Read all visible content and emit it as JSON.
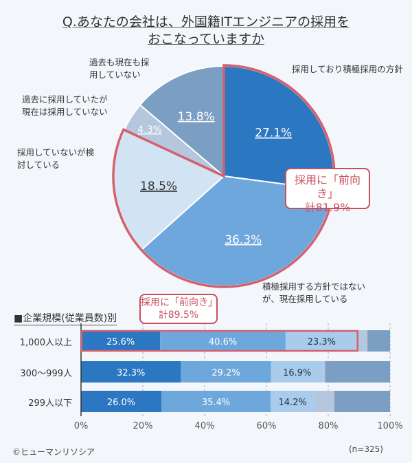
{
  "chart_data": [
    {
      "type": "pie",
      "title": "Q.あなたの会社は、外国籍ITエンジニアの採用をおこなっていますか",
      "slices": [
        {
          "label": "採用しており積極採用の方針",
          "value": 27.1,
          "display": "27.1%",
          "color": "#2b77c2"
        },
        {
          "label": "積極採用する方針ではないが、現在採用している",
          "value": 36.3,
          "display": "36.3%",
          "color": "#6ea7dc"
        },
        {
          "label": "採用していないが検討している",
          "value": 18.5,
          "display": "18.5%",
          "color": "#d2e3f4"
        },
        {
          "label": "過去に採用していたが現在は採用していない",
          "value": 4.3,
          "display": "4.3%",
          "color": "#b4c7dc"
        },
        {
          "label": "過去も現在も採用していない",
          "value": 13.8,
          "display": "13.8%",
          "color": "#7b9ec3"
        }
      ],
      "callout": {
        "line1": "採用に「前向き」",
        "line2": "計81.9%"
      }
    },
    {
      "type": "bar",
      "orientation": "horizontal",
      "stacked": true,
      "subtitle": "■企業規模(従業員数)別",
      "categories": [
        "1,000人以上",
        "300〜999人",
        "299人以下"
      ],
      "series": [
        {
          "values": [
            25.6,
            32.3,
            26.0
          ],
          "color": "#2b77c2",
          "show_labels": true
        },
        {
          "values": [
            40.6,
            29.2,
            35.4
          ],
          "color": "#6ea7dc",
          "show_labels": true
        },
        {
          "values": [
            23.3,
            16.9,
            14.2
          ],
          "color": "#a9cbec",
          "show_labels": true
        },
        {
          "values": [
            3.2,
            0.6,
            6.4
          ],
          "color": "#b4c7dc",
          "show_labels": false
        },
        {
          "values": [
            7.3,
            21.0,
            18.0
          ],
          "color": "#7b9ec3",
          "show_labels": false
        }
      ],
      "xlim": [
        0,
        100
      ],
      "xticks": [
        "0%",
        "20%",
        "40%",
        "60%",
        "80%",
        "100%"
      ],
      "grid": true,
      "callout": {
        "line1": "採用に「前向き」",
        "line2": "計89.5%"
      }
    }
  ],
  "footer": {
    "copyright": "©ヒューマンリソシア",
    "n": "(n=325)"
  }
}
